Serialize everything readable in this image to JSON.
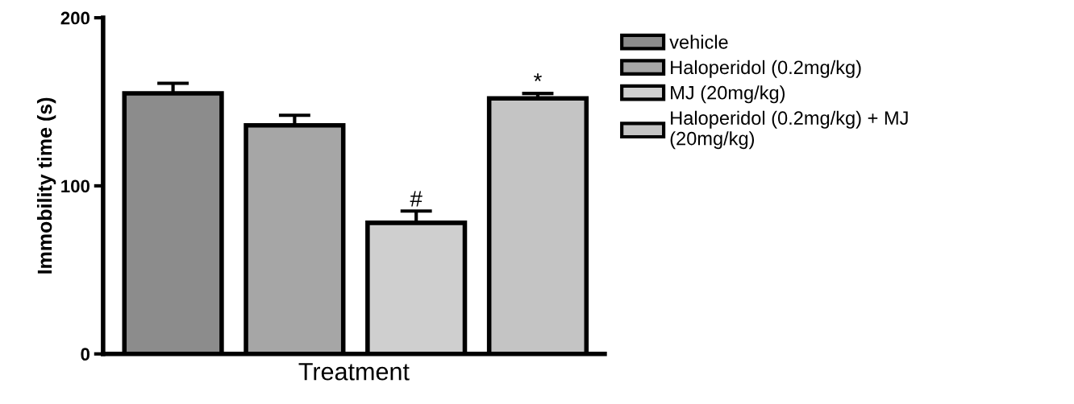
{
  "chart_data": {
    "type": "bar",
    "xlabel": "Treatment",
    "ylabel": "Immobility time (s)",
    "categories": [
      null
    ],
    "series": [
      {
        "name": "vehicle",
        "color": "#8c8c8c",
        "values": [
          155
        ],
        "errors": [
          [
            155,
            161
          ]
        ]
      },
      {
        "name": "Haloperidol (0.2mg/kg)",
        "color": "#a6a6a6",
        "values": [
          136
        ],
        "errors": [
          [
            136,
            142
          ]
        ]
      },
      {
        "name": "MJ (20mg/kg)",
        "color": "#cfcfcf",
        "values": [
          78
        ],
        "errors": [
          [
            78,
            85
          ]
        ],
        "value_labels": [
          "#"
        ]
      },
      {
        "name": "Haloperidol (0.2mg/kg) + MJ\n(20mg/kg)",
        "color": "#c4c4c4",
        "values": [
          152
        ],
        "errors": [
          [
            152,
            155
          ]
        ],
        "value_labels": [
          "*"
        ]
      }
    ],
    "ylim": [
      0,
      200
    ],
    "yticks": [
      0,
      100,
      200
    ],
    "grid": false,
    "legend": "top right"
  }
}
